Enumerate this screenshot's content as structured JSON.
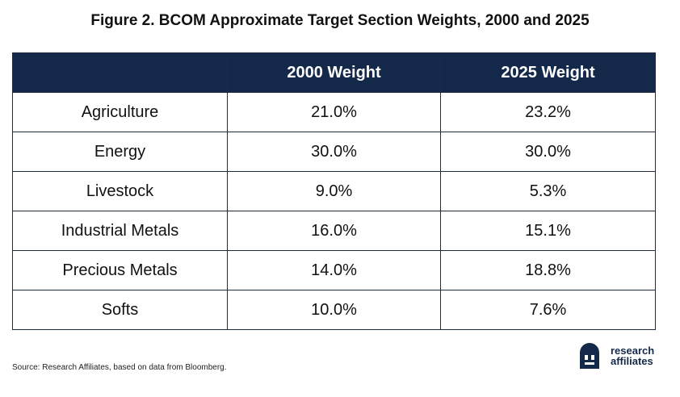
{
  "title": "Figure 2. BCOM Approximate Target Section Weights, 2000 and 2025",
  "source": "Source: Research Affiliates, based on data from Bloomberg.",
  "brand": {
    "line1": "research",
    "line2": "affiliates",
    "color": "#14294a"
  },
  "header_color": "#14294a",
  "chart_data": {
    "type": "table",
    "title": "Figure 2. BCOM Approximate Target Section Weights, 2000 and 2025",
    "columns": [
      "",
      "2000 Weight",
      "2025 Weight"
    ],
    "rows": [
      {
        "section": "Agriculture",
        "w2000": "21.0%",
        "w2025": "23.2%"
      },
      {
        "section": "Energy",
        "w2000": "30.0%",
        "w2025": "30.0%"
      },
      {
        "section": "Livestock",
        "w2000": "9.0%",
        "w2025": "5.3%"
      },
      {
        "section": "Industrial Metals",
        "w2000": "16.0%",
        "w2025": "15.1%"
      },
      {
        "section": "Precious Metals",
        "w2000": "14.0%",
        "w2025": "18.8%"
      },
      {
        "section": "Softs",
        "w2000": "10.0%",
        "w2025": "7.6%"
      }
    ]
  }
}
